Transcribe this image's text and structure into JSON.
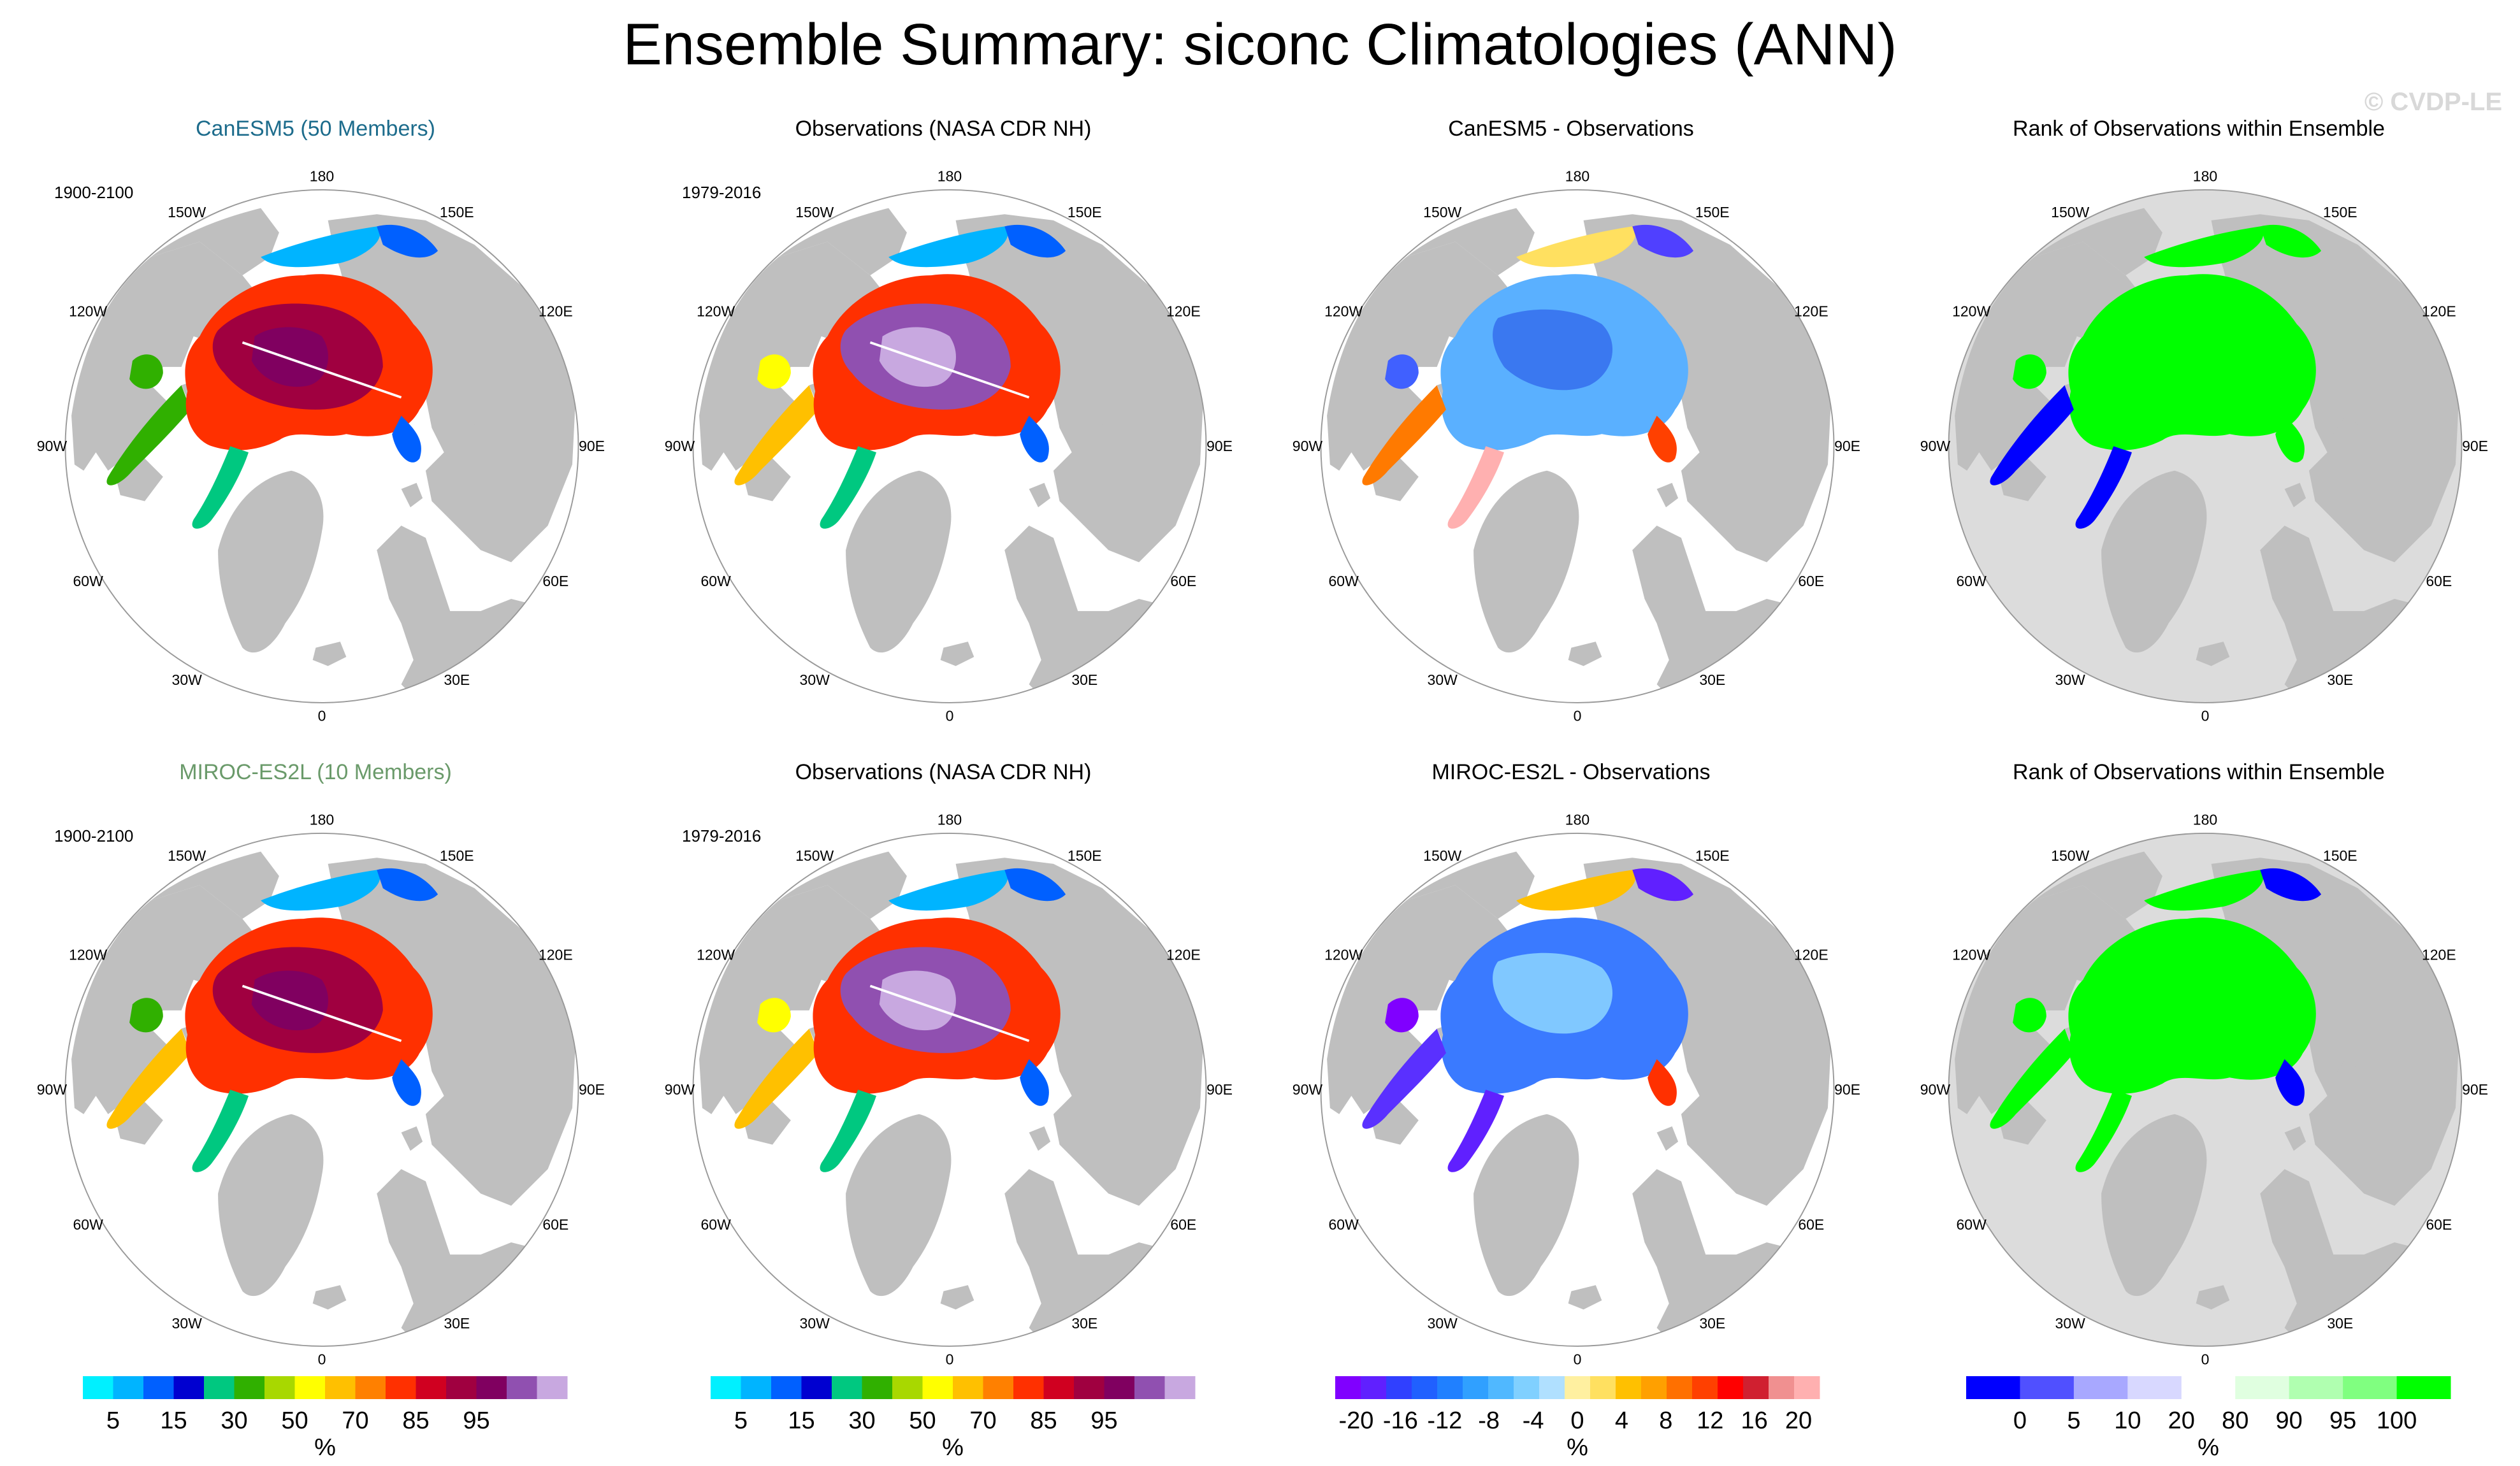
{
  "title": "Ensemble Summary: siconc Climatologies (ANN)",
  "watermark": "© CVDP-LE",
  "colors": {
    "land": "#bfbfbf",
    "ocean": "#ffffff",
    "title_canesm5": "#1d6c8c",
    "title_miroc": "#6a9a6a"
  },
  "lon_labels": [
    "180",
    "150E",
    "120E",
    "90E",
    "60E",
    "30E",
    "0",
    "30W",
    "60W",
    "90W",
    "120W",
    "150W"
  ],
  "panels": [
    {
      "title": "CanESM5 (50 Members)",
      "period": "1900-2100",
      "kind": "sic",
      "title_color": "#1d6c8c"
    },
    {
      "title": "Observations (NASA CDR NH)",
      "period": "1979-2016",
      "kind": "obs",
      "title_color": "#000000"
    },
    {
      "title": "CanESM5 - Observations",
      "period": "",
      "kind": "diff1",
      "title_color": "#000000"
    },
    {
      "title": "Rank of Observations within Ensemble",
      "period": "",
      "kind": "rank1",
      "title_color": "#000000"
    },
    {
      "title": "MIROC-ES2L (10 Members)",
      "period": "1900-2100",
      "kind": "sic2",
      "title_color": "#6a9a6a"
    },
    {
      "title": "Observations (NASA CDR NH)",
      "period": "1979-2016",
      "kind": "obs",
      "title_color": "#000000"
    },
    {
      "title": "MIROC-ES2L - Observations",
      "period": "",
      "kind": "diff2",
      "title_color": "#000000"
    },
    {
      "title": "Rank of Observations within Ensemble",
      "period": "",
      "kind": "rank2",
      "title_color": "#000000"
    }
  ],
  "colorbars": [
    {
      "unit": "%",
      "colors": [
        "#00f0ff",
        "#00b4ff",
        "#0060ff",
        "#0000d0",
        "#00c880",
        "#30b000",
        "#a8d800",
        "#ffff00",
        "#ffc000",
        "#ff8000",
        "#ff3000",
        "#d00020",
        "#a00040",
        "#800060",
        "#9050b0",
        "#c8a8e0"
      ],
      "labels": [
        "5",
        "15",
        "30",
        "50",
        "70",
        "85",
        "95"
      ]
    },
    {
      "unit": "%",
      "colors": [
        "#00f0ff",
        "#00b4ff",
        "#0060ff",
        "#0000d0",
        "#00c880",
        "#30b000",
        "#a8d800",
        "#ffff00",
        "#ffc000",
        "#ff8000",
        "#ff3000",
        "#d00020",
        "#a00040",
        "#800060",
        "#9050b0",
        "#c8a8e0"
      ],
      "labels": [
        "5",
        "15",
        "30",
        "50",
        "70",
        "85",
        "95"
      ]
    },
    {
      "unit": "%",
      "colors": [
        "#8000ff",
        "#6020ff",
        "#3040ff",
        "#2060ff",
        "#2080ff",
        "#30a0ff",
        "#50b8ff",
        "#80d0ff",
        "#b0e0ff",
        "#fff0a0",
        "#ffe060",
        "#ffc000",
        "#ffa000",
        "#ff7000",
        "#ff4000",
        "#ff0000",
        "#d02030",
        "#f09090",
        "#ffb0b0"
      ],
      "labels": [
        "-20",
        "-16",
        "-12",
        "-8",
        "-4",
        "0",
        "4",
        "8",
        "12",
        "16",
        "20"
      ]
    },
    {
      "unit": "%",
      "colors": [
        "#0000ff",
        "#5050ff",
        "#a8a8ff",
        "#d8d8ff",
        "#ffffff",
        "#e0ffe0",
        "#b0ffb0",
        "#80ff80",
        "#00ff00"
      ],
      "labels": [
        "0",
        "5",
        "10",
        "20",
        "80",
        "90",
        "95",
        "100"
      ]
    }
  ]
}
